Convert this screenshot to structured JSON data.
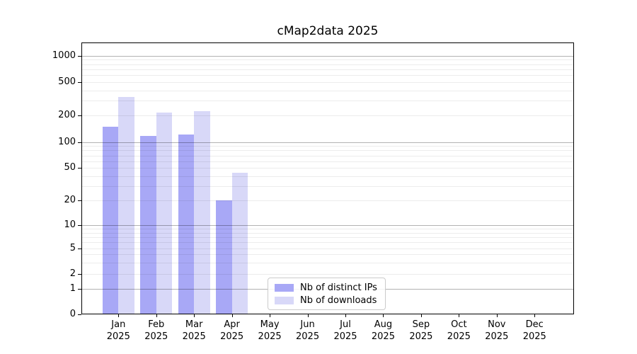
{
  "chart_data": {
    "type": "bar",
    "title": "cMap2data 2025",
    "categories": [
      "Jan",
      "Feb",
      "Mar",
      "Apr",
      "May",
      "Jun",
      "Jul",
      "Aug",
      "Sep",
      "Oct",
      "Nov",
      "Dec"
    ],
    "category_year": "2025",
    "series": [
      {
        "name": "Nb of distinct IPs",
        "color": "#a8a8f6",
        "values": [
          150,
          117,
          122,
          20,
          0,
          0,
          0,
          0,
          0,
          0,
          0,
          0
        ]
      },
      {
        "name": "Nb of downloads",
        "color": "#d8d8f8",
        "values": [
          330,
          217,
          225,
          44,
          0,
          0,
          0,
          0,
          0,
          0,
          0,
          0
        ]
      }
    ],
    "yscale": "symlog",
    "ytick_values": [
      0,
      1,
      2,
      5,
      10,
      20,
      50,
      100,
      200,
      500,
      1000
    ],
    "ytick_labels": [
      "0",
      "1",
      "2",
      "5",
      "10",
      "20",
      "50",
      "100",
      "200",
      "500",
      "1000"
    ],
    "ylim": [
      0,
      1400
    ],
    "grid": "horizontal",
    "legend_position": "lower center"
  }
}
